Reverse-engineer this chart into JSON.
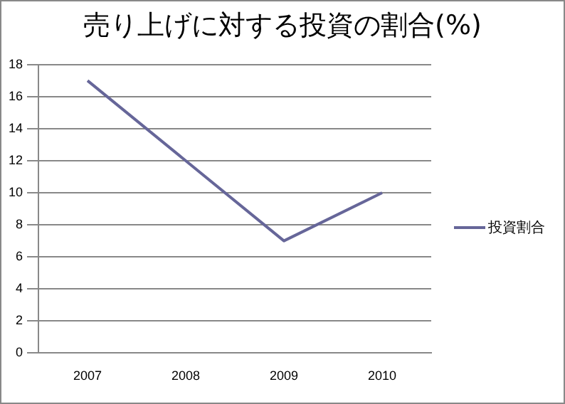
{
  "chart_data": {
    "type": "line",
    "title": "売り上げに対する投資の割合(%)",
    "categories": [
      "2007",
      "2008",
      "2009",
      "2010"
    ],
    "series": [
      {
        "name": "投資割合",
        "color": "#666699",
        "values": [
          17,
          12,
          7,
          10
        ]
      }
    ],
    "ylim": [
      0,
      18
    ],
    "yticks": [
      0,
      2,
      4,
      6,
      8,
      10,
      12,
      14,
      16,
      18
    ],
    "grid": "y",
    "legend": "right",
    "marker": "none",
    "line_style": "solid"
  }
}
